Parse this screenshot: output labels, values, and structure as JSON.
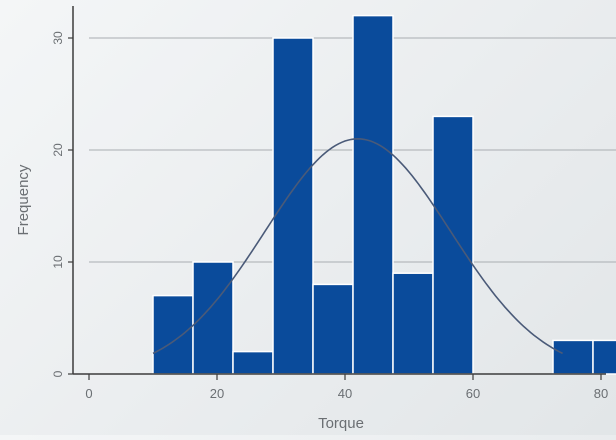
{
  "chart_data": {
    "type": "bar",
    "subtype": "histogram",
    "xlabel": "Torque",
    "ylabel": "Frequency",
    "xlim": [
      0,
      80
    ],
    "ylim": [
      0,
      32
    ],
    "x_ticks": [
      0,
      20,
      40,
      60,
      80
    ],
    "y_ticks": [
      0,
      10,
      20,
      30
    ],
    "grid": "horizontal",
    "bin_width": 6.25,
    "bins": [
      {
        "start": 10.0,
        "end": 16.25,
        "value": 7
      },
      {
        "start": 16.25,
        "end": 22.5,
        "value": 10
      },
      {
        "start": 22.5,
        "end": 28.75,
        "value": 2
      },
      {
        "start": 28.75,
        "end": 35.0,
        "value": 30
      },
      {
        "start": 35.0,
        "end": 41.25,
        "value": 8
      },
      {
        "start": 41.25,
        "end": 47.5,
        "value": 32
      },
      {
        "start": 47.5,
        "end": 53.75,
        "value": 9
      },
      {
        "start": 53.75,
        "end": 60.0,
        "value": 23
      },
      {
        "start": 60.0,
        "end": 66.25,
        "value": 0
      },
      {
        "start": 66.25,
        "end": 72.5,
        "value": 0
      },
      {
        "start": 72.5,
        "end": 78.75,
        "value": 3
      },
      {
        "start": 78.75,
        "end": 85.0,
        "value": 3
      }
    ],
    "fit_curve": {
      "type": "normal",
      "mean": 42,
      "std": 14.5,
      "peak": 21
    },
    "colors": {
      "bar": "#0a4b9b",
      "bar_edge": "#ffffff",
      "curve": "#4a5a78",
      "grid": "#a9adb1",
      "axis": "#3c3c3c"
    }
  }
}
